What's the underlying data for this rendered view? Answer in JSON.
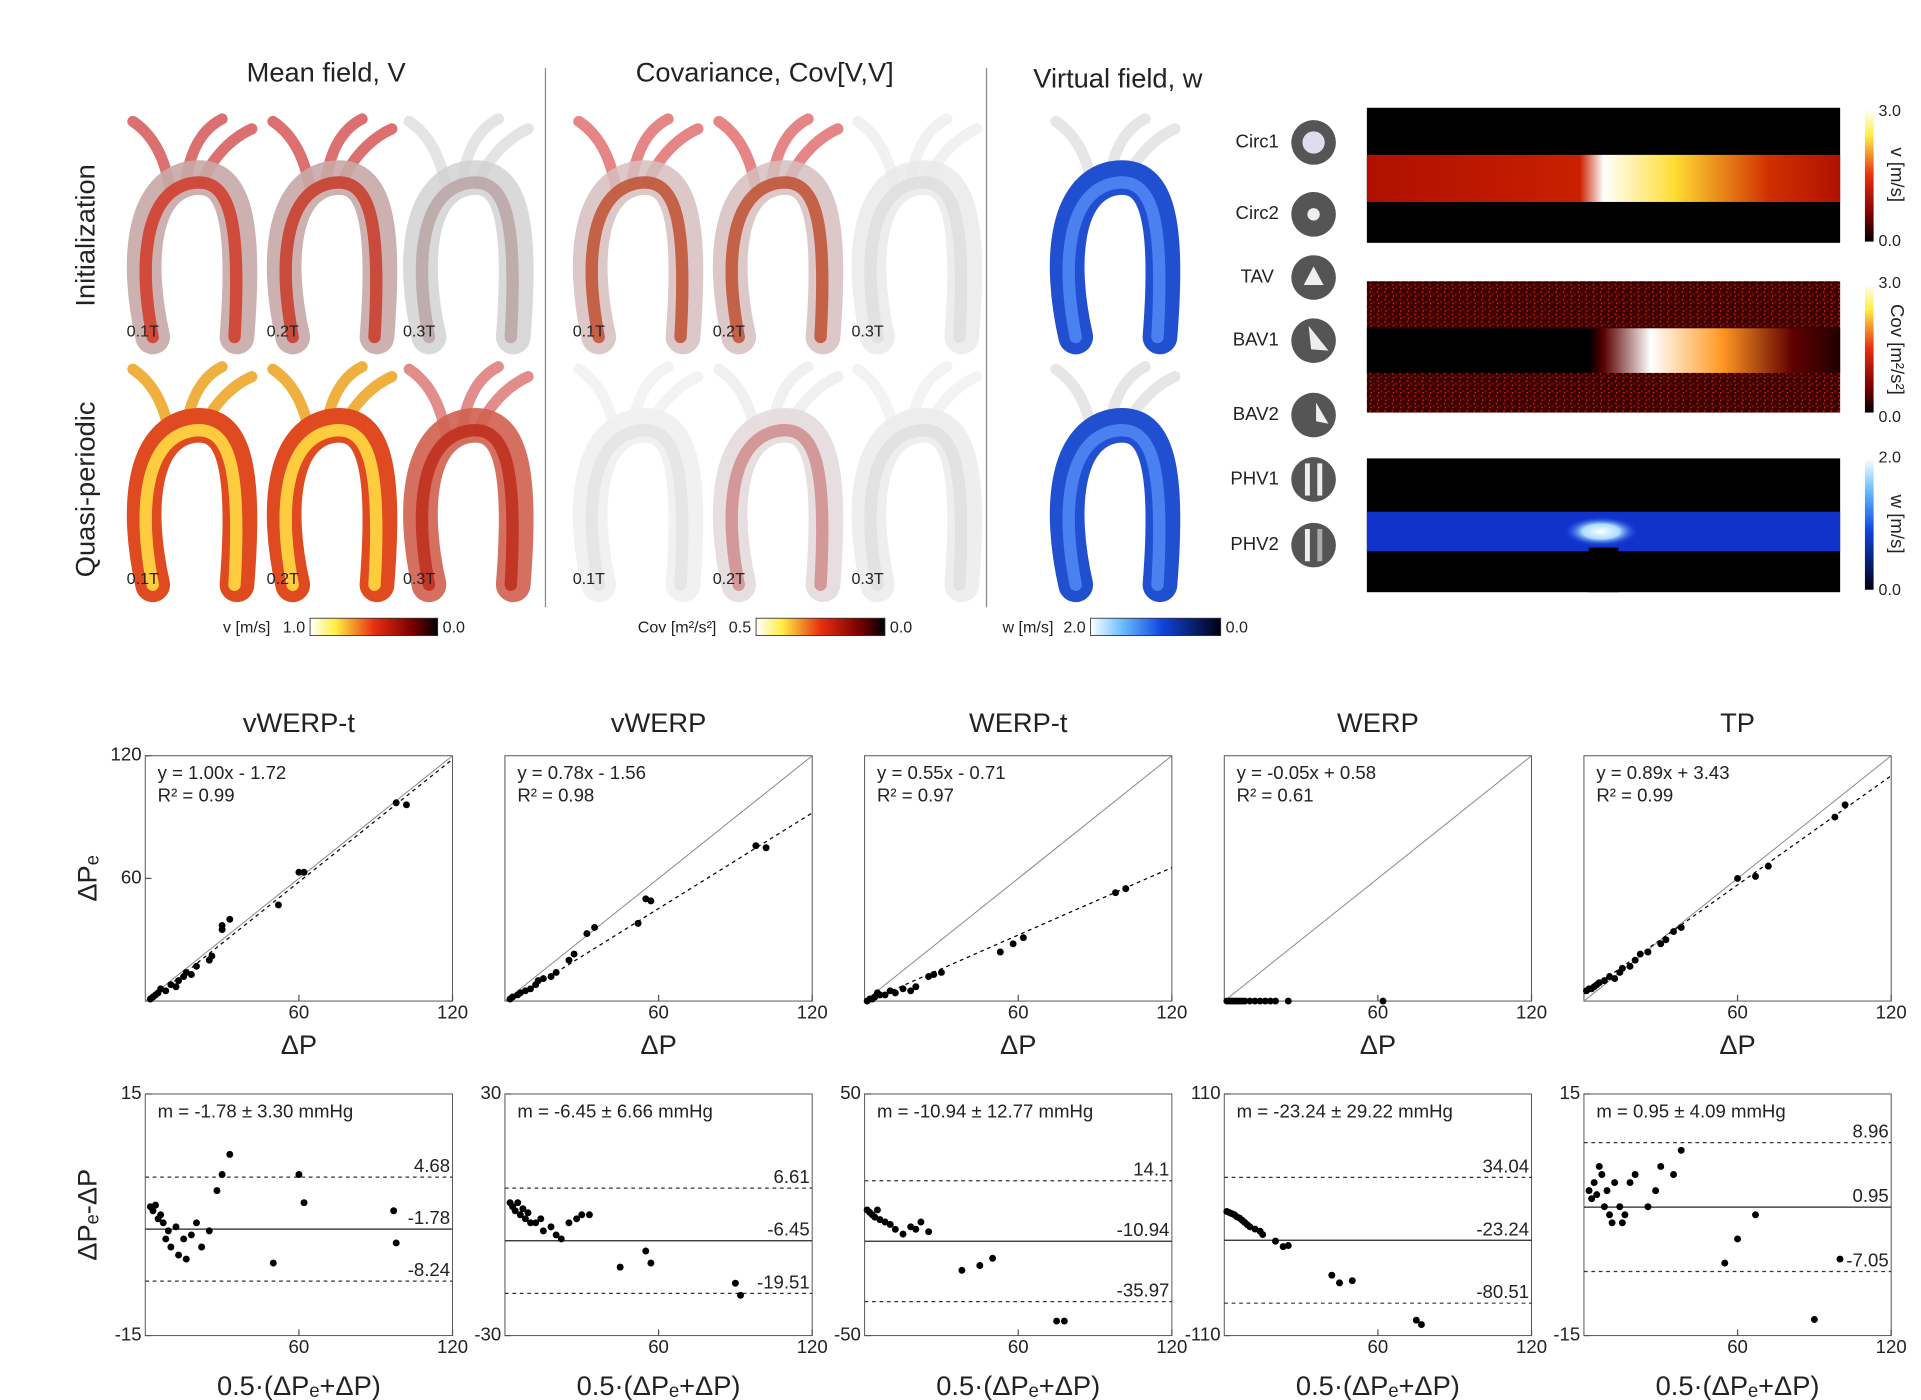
{
  "figure": {
    "panels": [
      {
        "title": "Mean field, V",
        "rows": [
          [
            "0.1T",
            "0.2T",
            "0.3T"
          ],
          [
            "0.1T",
            "0.2T",
            "0.3T"
          ]
        ],
        "colorbar": {
          "label": "v [m/s]",
          "max": "1.0",
          "min": "0.0"
        }
      },
      {
        "title": "Covariance, Cov[V,V]",
        "rows": [
          [
            "0.1T",
            "0.2T",
            "0.3T"
          ],
          [
            "0.1T",
            "0.2T",
            "0.3T"
          ]
        ],
        "colorbar": {
          "label": "Cov [m²/s²]",
          "max": "0.5",
          "min": "0.0"
        }
      },
      {
        "title": "Virtual field, w",
        "colorbar": {
          "label": "w [m/s]",
          "max": "2.0",
          "min": "0.0"
        }
      }
    ],
    "row_labels": [
      "Initialization",
      "Quasi-periodic"
    ],
    "valves": [
      "Circ1",
      "Circ2",
      "TAV",
      "BAV1",
      "BAV2",
      "PHV1",
      "PHV2"
    ],
    "maps": [
      {
        "label": "v [m/s]",
        "max": "3.0",
        "min": "0.0"
      },
      {
        "label": "Cov [m²/s²]",
        "max": "3.0",
        "min": "0.0"
      },
      {
        "label": "w [m/s]",
        "max": "2.0",
        "min": "0.0"
      }
    ]
  },
  "chart_data": [
    {
      "type": "scatter",
      "title": "vWERP-t",
      "x_label": "ΔP",
      "y_label": "ΔPₑ",
      "annotation": [
        "y = 1.00x - 1.72",
        "R² = 0.99"
      ],
      "identity": true,
      "fit": {
        "slope": 1.0,
        "intercept": -1.72
      },
      "xlim": [
        0,
        120
      ],
      "ylim": [
        0,
        120
      ],
      "xticks": [
        60,
        120
      ],
      "yticks": [
        60,
        120
      ],
      "color": "#000000",
      "x": [
        2,
        3,
        4,
        5,
        6,
        8,
        10,
        12,
        13,
        15,
        16,
        18,
        20,
        25,
        26,
        30,
        30,
        33,
        52,
        60,
        62,
        98,
        102
      ],
      "values": [
        1,
        2,
        3,
        4,
        6,
        5,
        8,
        7,
        10,
        12,
        14,
        13,
        17,
        20,
        22,
        35,
        37,
        40,
        47,
        63,
        63,
        97,
        96
      ]
    },
    {
      "type": "scatter",
      "title": "vWERP",
      "x_label": "ΔP",
      "annotation": [
        "y = 0.78x - 1.56",
        "R² = 0.98"
      ],
      "identity": true,
      "fit": {
        "slope": 0.78,
        "intercept": -1.56
      },
      "xlim": [
        0,
        120
      ],
      "ylim": [
        0,
        120
      ],
      "xticks": [
        60,
        120
      ],
      "yticks": [],
      "color": "#000000",
      "x": [
        2,
        3,
        5,
        6,
        8,
        10,
        12,
        13,
        15,
        18,
        20,
        25,
        27,
        32,
        35,
        52,
        55,
        57,
        98,
        102
      ],
      "values": [
        1,
        2,
        3,
        4,
        5,
        6,
        8,
        10,
        11,
        12,
        14,
        20,
        23,
        33,
        36,
        38,
        50,
        49,
        76,
        75
      ]
    },
    {
      "type": "scatter",
      "title": "WERP-t",
      "x_label": "ΔP",
      "annotation": [
        "y = 0.55x - 0.71",
        "R² = 0.97"
      ],
      "identity": true,
      "fit": {
        "slope": 0.55,
        "intercept": -0.71
      },
      "xlim": [
        0,
        120
      ],
      "ylim": [
        0,
        120
      ],
      "xticks": [
        60,
        120
      ],
      "yticks": [],
      "color": "#000000",
      "x": [
        1,
        2,
        3,
        4,
        5,
        6,
        8,
        10,
        12,
        15,
        18,
        20,
        25,
        27,
        30,
        53,
        58,
        62,
        98,
        102
      ],
      "values": [
        0,
        1,
        1,
        2,
        4,
        3,
        3,
        5,
        4,
        6,
        5,
        7,
        12,
        13,
        14,
        24,
        28,
        31,
        53,
        55
      ]
    },
    {
      "type": "scatter",
      "title": "WERP",
      "x_label": "ΔP",
      "annotation": [
        "y = -0.05x + 0.58",
        "R² = 0.61"
      ],
      "identity": true,
      "fit": {
        "slope": -0.05,
        "intercept": 0.58
      },
      "xlim": [
        0,
        120
      ],
      "ylim": [
        0,
        120
      ],
      "xticks": [
        60,
        120
      ],
      "yticks": [],
      "color": "#000000",
      "x": [
        1,
        2,
        3,
        4,
        5,
        6,
        7,
        8,
        10,
        12,
        14,
        16,
        18,
        20,
        25,
        62
      ],
      "values": [
        0,
        0,
        0,
        0,
        0,
        0,
        0,
        0,
        0,
        0,
        0,
        0,
        0,
        0,
        0,
        0
      ]
    },
    {
      "type": "scatter",
      "title": "TP",
      "x_label": "ΔP",
      "annotation": [
        "y = 0.89x + 3.43",
        "R² = 0.99"
      ],
      "identity": true,
      "fit": {
        "slope": 0.89,
        "intercept": 3.43
      },
      "xlim": [
        0,
        120
      ],
      "ylim": [
        0,
        120
      ],
      "xticks": [
        60,
        120
      ],
      "yticks": [],
      "color": "#000000",
      "x": [
        1,
        2,
        3,
        4,
        5,
        6,
        8,
        10,
        12,
        14,
        15,
        18,
        20,
        22,
        25,
        30,
        32,
        35,
        38,
        60,
        67,
        72,
        98,
        102
      ],
      "values": [
        5,
        6,
        6,
        7,
        8,
        9,
        10,
        12,
        11,
        14,
        16,
        17,
        20,
        23,
        24,
        28,
        30,
        34,
        36,
        60,
        61,
        66,
        90,
        96
      ]
    },
    {
      "type": "scatter",
      "x_label": "0.5·(ΔPₑ+ΔP)",
      "y_label": "ΔPₑ-ΔP",
      "annotation": [
        "m = -1.78 ± 3.30 mmHg"
      ],
      "mean": -1.78,
      "limits": [
        4.68,
        -8.24
      ],
      "xlim": [
        0,
        120
      ],
      "ylim": [
        -15,
        15
      ],
      "xticks": [
        60,
        120
      ],
      "yticks": [
        -15,
        15
      ],
      "color": "#000000",
      "x": [
        2,
        3,
        4,
        5,
        6,
        7,
        8,
        9,
        10,
        12,
        13,
        15,
        16,
        18,
        20,
        22,
        25,
        28,
        30,
        33,
        50,
        60,
        62,
        97,
        98
      ],
      "values": [
        1,
        0.5,
        1.2,
        -0.5,
        0,
        -1,
        -3,
        -2,
        -4,
        -1.5,
        -5,
        -3,
        -5.5,
        -2.5,
        -1,
        -4,
        -2,
        3,
        5,
        7.5,
        -6,
        5,
        1.5,
        0.5,
        -3.5
      ]
    },
    {
      "type": "scatter",
      "x_label": "0.5·(ΔPₑ+ΔP)",
      "annotation": [
        "m = -6.45 ± 6.66 mmHg"
      ],
      "mean": -6.45,
      "limits": [
        6.61,
        -19.51
      ],
      "xlim": [
        0,
        120
      ],
      "ylim": [
        -30,
        30
      ],
      "xticks": [
        60,
        120
      ],
      "yticks": [
        -30,
        30
      ],
      "color": "#000000",
      "x": [
        2,
        3,
        4,
        5,
        6,
        7,
        8,
        9,
        10,
        12,
        14,
        15,
        18,
        20,
        22,
        25,
        28,
        30,
        33,
        45,
        55,
        57,
        90,
        92
      ],
      "values": [
        3,
        2,
        1,
        3,
        0,
        1.5,
        -1,
        0.5,
        -2,
        -2,
        -1,
        -4,
        -3,
        -5,
        -6,
        -2,
        -1,
        0,
        0,
        -13,
        -9,
        -12,
        -17,
        -20
      ]
    },
    {
      "type": "scatter",
      "x_label": "0.5·(ΔPₑ+ΔP)",
      "annotation": [
        "m = -10.94 ± 12.77 mmHg"
      ],
      "mean": -10.94,
      "limits": [
        14.1,
        -35.97
      ],
      "xlim": [
        0,
        120
      ],
      "ylim": [
        -50,
        50
      ],
      "xticks": [
        60,
        120
      ],
      "yticks": [
        -50,
        50
      ],
      "color": "#000000",
      "x": [
        1,
        2,
        3,
        4,
        5,
        6,
        8,
        10,
        12,
        15,
        18,
        20,
        22,
        25,
        38,
        45,
        50,
        75,
        78
      ],
      "values": [
        2,
        1,
        0,
        -1,
        2,
        -2,
        -3,
        -4,
        -6,
        -8,
        -5,
        -6,
        -3,
        -7,
        -23,
        -21,
        -18,
        -44,
        -44
      ]
    },
    {
      "type": "scatter",
      "x_label": "0.5·(ΔPₑ+ΔP)",
      "annotation": [
        "m = -23.24 ± 29.22 mmHg"
      ],
      "mean": -23.24,
      "limits": [
        34.04,
        -80.51
      ],
      "xlim": [
        0,
        120
      ],
      "ylim": [
        -110,
        110
      ],
      "xticks": [
        60,
        120
      ],
      "yticks": [
        -110,
        110
      ],
      "color": "#000000",
      "x": [
        1,
        2,
        3,
        4,
        5,
        6,
        7,
        8,
        9,
        10,
        12,
        14,
        15,
        20,
        23,
        25,
        42,
        45,
        50,
        75,
        77
      ],
      "values": [
        3,
        2,
        1,
        0,
        -2,
        -3,
        -5,
        -7,
        -9,
        -11,
        -13,
        -15,
        -18,
        -24,
        -29,
        -28,
        -55,
        -62,
        -60,
        -96,
        -100
      ]
    },
    {
      "type": "scatter",
      "x_label": "0.5·(ΔPₑ+ΔP)",
      "annotation": [
        "m = 0.95 ± 4.09 mmHg"
      ],
      "mean": 0.95,
      "limits": [
        8.96,
        -7.05
      ],
      "xlim": [
        0,
        120
      ],
      "ylim": [
        -15,
        15
      ],
      "xticks": [
        60,
        120
      ],
      "yticks": [
        -15,
        15
      ],
      "color": "#000000",
      "x": [
        2,
        3,
        4,
        5,
        6,
        7,
        8,
        9,
        10,
        11,
        12,
        14,
        15,
        16,
        18,
        20,
        25,
        28,
        30,
        35,
        38,
        55,
        60,
        67,
        90,
        100
      ],
      "values": [
        3,
        2,
        4,
        2.5,
        6,
        5,
        1,
        3,
        0,
        -1,
        4,
        1,
        -1,
        0,
        4,
        5,
        1,
        3,
        6,
        5,
        8,
        -6,
        -3,
        0,
        -13,
        -5.5
      ]
    }
  ]
}
